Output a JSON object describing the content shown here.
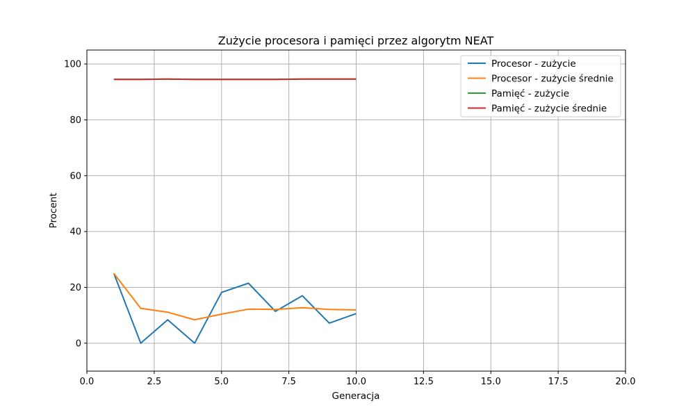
{
  "chart_data": {
    "type": "line",
    "title": "Zużycie procesora i pamięci przez algorytm NEAT",
    "xlabel": "Generacja",
    "ylabel": "Procent",
    "xlim": [
      0,
      20
    ],
    "ylim": [
      -10,
      105
    ],
    "xticks": [
      0,
      2.5,
      5,
      7.5,
      10,
      12.5,
      15,
      17.5,
      20
    ],
    "xtick_labels": [
      "0.0",
      "2.5",
      "5.0",
      "7.5",
      "10.0",
      "12.5",
      "15.0",
      "17.5",
      "20.0"
    ],
    "yticks": [
      0,
      20,
      40,
      60,
      80,
      100
    ],
    "ytick_labels": [
      "0",
      "20",
      "40",
      "60",
      "80",
      "100"
    ],
    "grid": true,
    "legend_position": "top-right",
    "x": [
      1,
      2,
      3,
      4,
      5,
      6,
      7,
      8,
      9,
      10
    ],
    "series": [
      {
        "name": "Procesor - zużycie",
        "color": "#1f77b4",
        "values": [
          25.0,
          0.0,
          8.4,
          0.0,
          18.2,
          21.5,
          11.4,
          17.0,
          7.2,
          10.6
        ]
      },
      {
        "name": "Procesor - zużycie średnie",
        "color": "#ff7f0e",
        "values": [
          25.0,
          12.5,
          11.1,
          8.4,
          10.4,
          12.2,
          12.1,
          12.7,
          12.1,
          11.9
        ]
      },
      {
        "name": "Pamięć - zużycie",
        "color": "#2ca02c",
        "values": [
          94.5,
          94.5,
          94.6,
          94.5,
          94.5,
          94.5,
          94.5,
          94.6,
          94.6,
          94.6
        ]
      },
      {
        "name": "Pamięć - zużycie średnie",
        "color": "#d62728",
        "values": [
          94.5,
          94.5,
          94.6,
          94.5,
          94.5,
          94.5,
          94.5,
          94.6,
          94.6,
          94.6
        ]
      }
    ]
  }
}
